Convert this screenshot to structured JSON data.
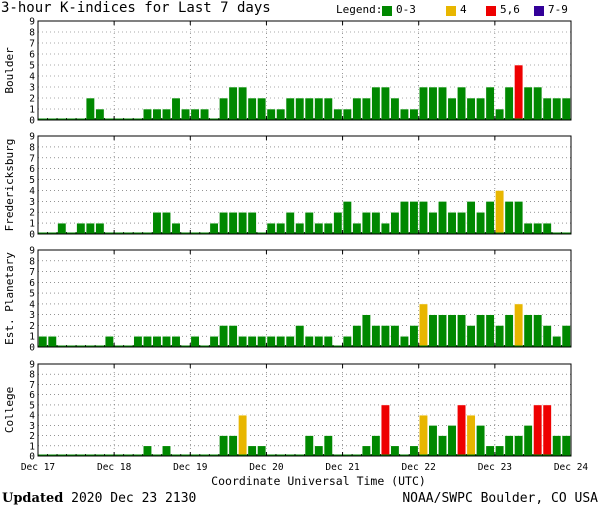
{
  "header": {
    "title": "3-hour K-indices for Last 7 days",
    "legend_label": "Legend:",
    "legend_items": [
      {
        "label": "0-3",
        "color": "#008800"
      },
      {
        "label": "4",
        "color": "#e8b600"
      },
      {
        "label": "5,6",
        "color": "#ee0000"
      },
      {
        "label": "7-9",
        "color": "#330099"
      }
    ]
  },
  "footer": {
    "updated_label": "Updated",
    "updated_value": "2020 Dec 23 2130",
    "credit": "NOAA/SWPC Boulder, CO USA"
  },
  "chart_data": [
    {
      "type": "bar",
      "ylabel": "Boulder",
      "xlabel": "Coordinate Universal Time (UTC)",
      "ylim": [
        0,
        9
      ],
      "yticks": [
        0,
        1,
        2,
        3,
        4,
        5,
        6,
        7,
        8,
        9
      ],
      "x_tick_labels": [
        "Dec 17",
        "Dec 18",
        "Dec 19",
        "Dec 20",
        "Dec 21",
        "Dec 22",
        "Dec 23",
        "Dec 24"
      ],
      "grid": true,
      "interval_hours": 3,
      "values": [
        0,
        0,
        0,
        0,
        0,
        2,
        1,
        0,
        0,
        0,
        0,
        1,
        1,
        1,
        2,
        1,
        1,
        1,
        0,
        2,
        3,
        3,
        2,
        2,
        1,
        1,
        2,
        2,
        2,
        2,
        2,
        1,
        1,
        2,
        2,
        3,
        3,
        2,
        1,
        1,
        3,
        3,
        3,
        2,
        3,
        2,
        2,
        3,
        1,
        3,
        5,
        3,
        3,
        2,
        2,
        2,
        0
      ]
    },
    {
      "type": "bar",
      "ylabel": "Fredericksburg",
      "ylim": [
        0,
        9
      ],
      "yticks": [
        0,
        1,
        2,
        3,
        4,
        5,
        6,
        7,
        8,
        9
      ],
      "x_tick_labels": [
        "Dec 17",
        "Dec 18",
        "Dec 19",
        "Dec 20",
        "Dec 21",
        "Dec 22",
        "Dec 23",
        "Dec 24"
      ],
      "grid": true,
      "interval_hours": 3,
      "values": [
        0,
        0,
        1,
        0,
        1,
        1,
        1,
        0,
        0,
        0,
        0,
        0,
        2,
        2,
        1,
        0,
        0,
        0,
        1,
        2,
        2,
        2,
        2,
        0,
        1,
        1,
        2,
        1,
        2,
        1,
        1,
        2,
        3,
        1,
        2,
        2,
        1,
        2,
        3,
        3,
        3,
        2,
        3,
        2,
        2,
        3,
        2,
        3,
        4,
        3,
        3,
        1,
        1,
        1,
        0,
        0,
        0
      ]
    },
    {
      "type": "bar",
      "ylabel": "Est. Planetary",
      "ylim": [
        0,
        9
      ],
      "yticks": [
        0,
        1,
        2,
        3,
        4,
        5,
        6,
        7,
        8,
        9
      ],
      "x_tick_labels": [
        "Dec 17",
        "Dec 18",
        "Dec 19",
        "Dec 20",
        "Dec 21",
        "Dec 22",
        "Dec 23",
        "Dec 24"
      ],
      "grid": true,
      "interval_hours": 3,
      "values": [
        1,
        1,
        0,
        0,
        0,
        0,
        0,
        1,
        0,
        0,
        1,
        1,
        1,
        1,
        1,
        0,
        1,
        0,
        1,
        2,
        2,
        1,
        1,
        1,
        1,
        1,
        1,
        2,
        1,
        1,
        1,
        0,
        1,
        2,
        3,
        2,
        2,
        2,
        1,
        2,
        4,
        3,
        3,
        3,
        3,
        2,
        3,
        3,
        2,
        3,
        4,
        3,
        3,
        2,
        1,
        2,
        0
      ]
    },
    {
      "type": "bar",
      "ylabel": "College",
      "ylim": [
        0,
        9
      ],
      "yticks": [
        0,
        1,
        2,
        3,
        4,
        5,
        6,
        7,
        8,
        9
      ],
      "x_tick_labels": [
        "Dec 17",
        "Dec 18",
        "Dec 19",
        "Dec 20",
        "Dec 21",
        "Dec 22",
        "Dec 23",
        "Dec 24"
      ],
      "grid": true,
      "interval_hours": 3,
      "values": [
        0,
        0,
        0,
        0,
        0,
        0,
        0,
        0,
        0,
        0,
        0,
        1,
        0,
        1,
        0,
        0,
        0,
        0,
        0,
        2,
        2,
        4,
        1,
        1,
        0,
        0,
        0,
        0,
        2,
        1,
        2,
        0,
        0,
        0,
        1,
        2,
        5,
        1,
        0,
        1,
        4,
        3,
        2,
        3,
        5,
        4,
        3,
        1,
        1,
        2,
        2,
        3,
        5,
        5,
        2,
        2,
        0
      ]
    }
  ]
}
